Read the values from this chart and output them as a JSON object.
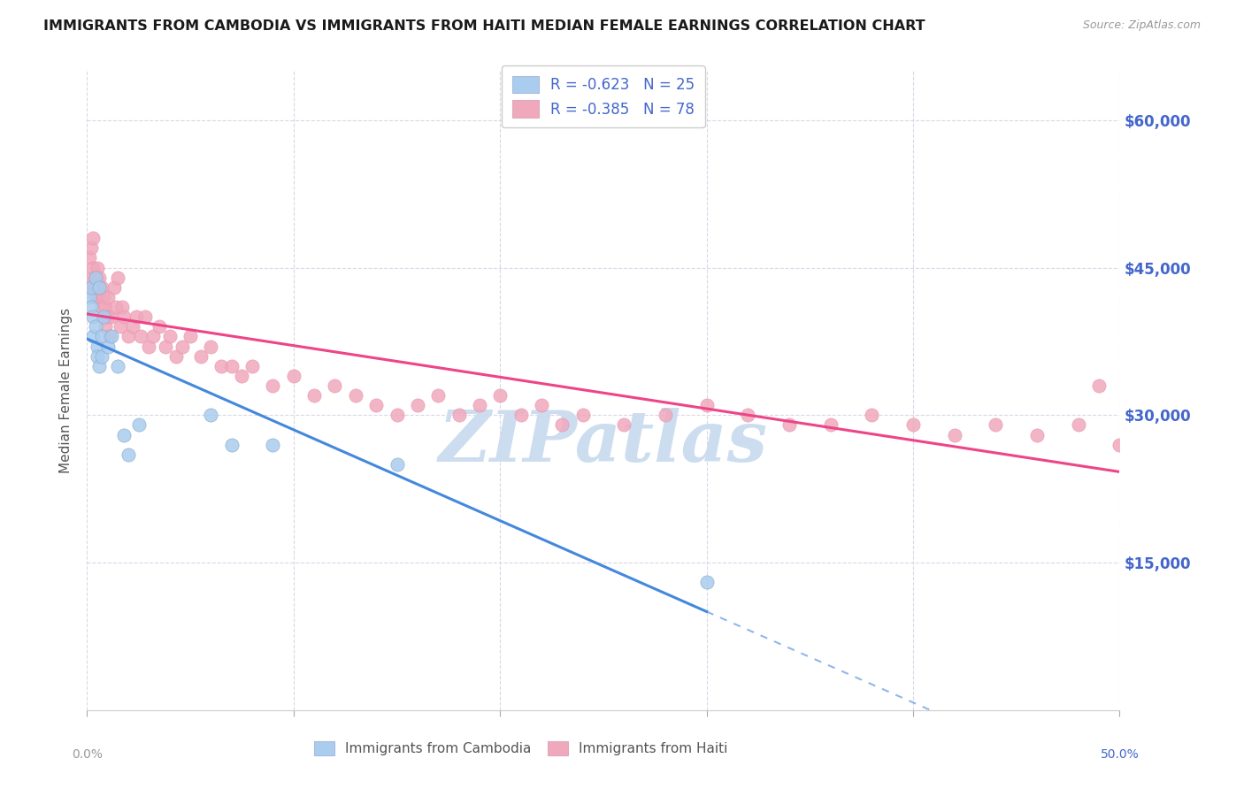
{
  "title": "IMMIGRANTS FROM CAMBODIA VS IMMIGRANTS FROM HAITI MEDIAN FEMALE EARNINGS CORRELATION CHART",
  "source": "Source: ZipAtlas.com",
  "ylabel": "Median Female Earnings",
  "ytick_labels": [
    "$15,000",
    "$30,000",
    "$45,000",
    "$60,000"
  ],
  "ytick_values": [
    15000,
    30000,
    45000,
    60000
  ],
  "legend_entry1": "R = -0.623   N = 25",
  "legend_entry2": "R = -0.385   N = 78",
  "legend_label1": "Immigrants from Cambodia",
  "legend_label2": "Immigrants from Haiti",
  "watermark": "ZIPatlas",
  "background_color": "#ffffff",
  "grid_color": "#d8d8e8",
  "title_color": "#1a1a1a",
  "axis_label_color": "#4466cc",
  "scatter_color_cambodia": "#aaccee",
  "scatter_color_haiti": "#f0a8bc",
  "line_color_cambodia": "#4488dd",
  "line_color_haiti": "#ee4488",
  "watermark_color": "#ccddf0",
  "xlim": [
    0.0,
    0.5
  ],
  "ylim": [
    0,
    65000
  ],
  "cambodia_x": [
    0.001,
    0.002,
    0.002,
    0.003,
    0.003,
    0.004,
    0.004,
    0.005,
    0.005,
    0.006,
    0.006,
    0.007,
    0.007,
    0.008,
    0.01,
    0.012,
    0.015,
    0.018,
    0.02,
    0.025,
    0.06,
    0.07,
    0.09,
    0.15,
    0.3
  ],
  "cambodia_y": [
    42000,
    43000,
    41000,
    40000,
    38000,
    44000,
    39000,
    37000,
    36000,
    43000,
    35000,
    38000,
    36000,
    40000,
    37000,
    38000,
    35000,
    28000,
    26000,
    29000,
    30000,
    27000,
    27000,
    25000,
    13000
  ],
  "haiti_x": [
    0.001,
    0.001,
    0.002,
    0.002,
    0.003,
    0.003,
    0.003,
    0.004,
    0.004,
    0.005,
    0.005,
    0.006,
    0.006,
    0.007,
    0.007,
    0.008,
    0.008,
    0.009,
    0.009,
    0.01,
    0.01,
    0.011,
    0.012,
    0.013,
    0.014,
    0.015,
    0.016,
    0.017,
    0.018,
    0.02,
    0.022,
    0.024,
    0.026,
    0.028,
    0.03,
    0.032,
    0.035,
    0.038,
    0.04,
    0.043,
    0.046,
    0.05,
    0.055,
    0.06,
    0.065,
    0.07,
    0.075,
    0.08,
    0.09,
    0.1,
    0.11,
    0.12,
    0.13,
    0.14,
    0.15,
    0.16,
    0.17,
    0.18,
    0.19,
    0.2,
    0.21,
    0.22,
    0.23,
    0.24,
    0.26,
    0.28,
    0.3,
    0.32,
    0.34,
    0.36,
    0.38,
    0.4,
    0.42,
    0.44,
    0.46,
    0.48,
    0.49,
    0.5
  ],
  "haiti_y": [
    46000,
    43000,
    47000,
    44000,
    48000,
    45000,
    43000,
    44000,
    42000,
    45000,
    43000,
    42000,
    44000,
    41000,
    43000,
    40000,
    42000,
    41000,
    39000,
    40000,
    42000,
    38000,
    40000,
    43000,
    41000,
    44000,
    39000,
    41000,
    40000,
    38000,
    39000,
    40000,
    38000,
    40000,
    37000,
    38000,
    39000,
    37000,
    38000,
    36000,
    37000,
    38000,
    36000,
    37000,
    35000,
    35000,
    34000,
    35000,
    33000,
    34000,
    32000,
    33000,
    32000,
    31000,
    30000,
    31000,
    32000,
    30000,
    31000,
    32000,
    30000,
    31000,
    29000,
    30000,
    29000,
    30000,
    31000,
    30000,
    29000,
    29000,
    30000,
    29000,
    28000,
    29000,
    28000,
    29000,
    33000,
    27000
  ]
}
